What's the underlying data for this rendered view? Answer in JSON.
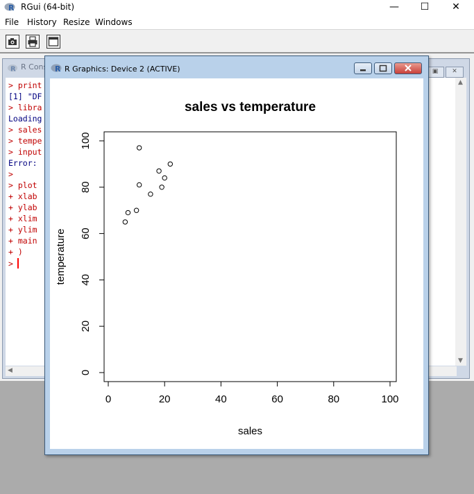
{
  "app": {
    "title": "RGui (64-bit)"
  },
  "window_controls": {
    "minimize": "—",
    "maximize": "☐",
    "close": "✕"
  },
  "menu": [
    "File",
    "History",
    "Resize",
    "Windows"
  ],
  "toolbar": {
    "icons": [
      "camera-icon",
      "printer-icon",
      "window-icon"
    ]
  },
  "console": {
    "title": "R Cons",
    "lines": [
      {
        "text": "> print",
        "style": "red"
      },
      {
        "text": "[1] \"DF",
        "style": "blue"
      },
      {
        "text": "> libra",
        "style": "red"
      },
      {
        "text": "Loading",
        "style": "blue"
      },
      {
        "text": "> sales",
        "style": "red"
      },
      {
        "text": "> tempe",
        "style": "red"
      },
      {
        "text": "> input",
        "style": "red"
      },
      {
        "text": "Error:",
        "style": "blue"
      },
      {
        "text": ">",
        "style": "red"
      },
      {
        "text": "> plot",
        "style": "red"
      },
      {
        "text": "+ xlab",
        "style": "red"
      },
      {
        "text": "+ ylab",
        "style": "red"
      },
      {
        "text": "+ xlim",
        "style": "red"
      },
      {
        "text": "+ ylim",
        "style": "red"
      },
      {
        "text": "+ main",
        "style": "red"
      },
      {
        "text": "+ )",
        "style": "red"
      },
      {
        "text": ">",
        "style": "red"
      }
    ]
  },
  "graphics_window": {
    "title": "R Graphics: Device 2 (ACTIVE)"
  },
  "chart_data": {
    "type": "scatter",
    "title": "sales vs temperature",
    "xlabel": "sales",
    "ylabel": "temperature",
    "xlim": [
      0,
      100
    ],
    "ylim": [
      0,
      100
    ],
    "xticks": [
      0,
      20,
      40,
      60,
      80,
      100
    ],
    "yticks": [
      0,
      20,
      40,
      60,
      80,
      100
    ],
    "points": [
      {
        "x": 6,
        "y": 65
      },
      {
        "x": 7,
        "y": 69
      },
      {
        "x": 10,
        "y": 70
      },
      {
        "x": 11,
        "y": 81
      },
      {
        "x": 11,
        "y": 97
      },
      {
        "x": 15,
        "y": 77
      },
      {
        "x": 18,
        "y": 87
      },
      {
        "x": 19,
        "y": 80
      },
      {
        "x": 20,
        "y": 84
      },
      {
        "x": 22,
        "y": 90
      }
    ],
    "grid": false,
    "legend": "none"
  },
  "colors": {
    "console_input": "#c00000",
    "console_output": "#000080",
    "cursor": "#ff0000",
    "graphics_frame": "#b9d1ea",
    "close_button": "#c8403a"
  }
}
